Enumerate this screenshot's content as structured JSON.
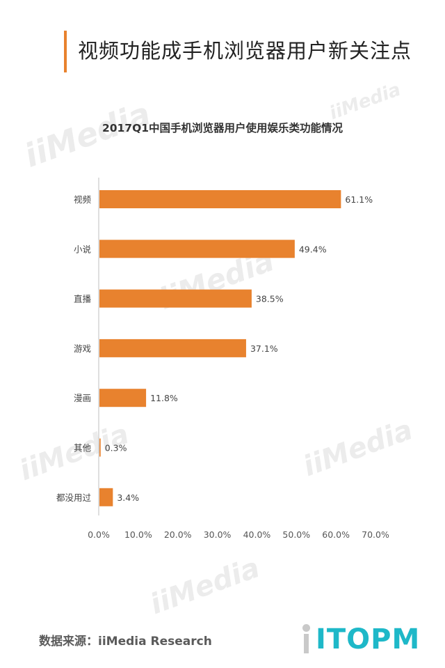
{
  "page_title": "视频功能成手机浏览器用户新关注点",
  "watermark_text": "iiMedia",
  "source_label": "数据来源：iiMedia Research",
  "brand_logo_text": "ITOPM",
  "colors": {
    "bar": "#e8822e",
    "title_accent": "#e8822e",
    "brand": "#1eb8c8"
  },
  "chart_data": {
    "type": "bar",
    "orientation": "horizontal",
    "title": "2017Q1中国手机浏览器用户使用娱乐类功能情况",
    "categories": [
      "视频",
      "小说",
      "直播",
      "游戏",
      "漫画",
      "其他",
      "都没用过"
    ],
    "values": [
      61.1,
      49.4,
      38.5,
      37.1,
      11.8,
      0.3,
      3.4
    ],
    "value_labels": [
      "61.1%",
      "49.4%",
      "38.5%",
      "37.1%",
      "11.8%",
      "0.3%",
      "3.4%"
    ],
    "x_ticks": [
      0,
      10,
      20,
      30,
      40,
      50,
      60,
      70
    ],
    "x_tick_labels": [
      "0.0%",
      "10.0%",
      "20.0%",
      "30.0%",
      "40.0%",
      "50.0%",
      "60.0%",
      "70.0%"
    ],
    "xlim": [
      0,
      70
    ],
    "grid": false,
    "legend": "none"
  }
}
